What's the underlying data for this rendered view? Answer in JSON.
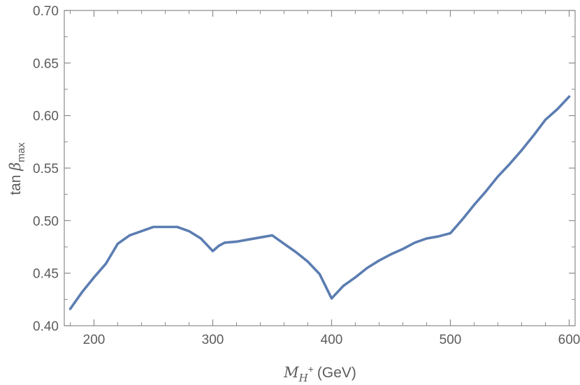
{
  "chart_data": {
    "type": "line",
    "title": "",
    "xlabel": {
      "main": "M",
      "sub": "H",
      "sup": "+",
      "unit": "(GeV)"
    },
    "ylabel": {
      "main": "tan ",
      "symbol": "β",
      "sub": "max"
    },
    "xlim": [
      175,
      605
    ],
    "ylim": [
      0.4,
      0.7
    ],
    "xticks": [
      200,
      300,
      400,
      500,
      600
    ],
    "yticks": [
      0.4,
      0.45,
      0.5,
      0.55,
      0.6,
      0.65,
      0.7
    ],
    "xtick_labels": [
      "200",
      "300",
      "400",
      "500",
      "600"
    ],
    "ytick_labels": [
      "0.40",
      "0.45",
      "0.50",
      "0.55",
      "0.60",
      "0.65",
      "0.70"
    ],
    "grid": false,
    "series": [
      {
        "color": "#5b7db1",
        "x": [
          180,
          185,
          190,
          200,
          210,
          220,
          230,
          240,
          250,
          260,
          270,
          280,
          290,
          300,
          305,
          310,
          320,
          330,
          340,
          350,
          360,
          370,
          380,
          390,
          400,
          410,
          420,
          430,
          440,
          450,
          460,
          470,
          480,
          490,
          500,
          510,
          520,
          530,
          540,
          550,
          560,
          570,
          580,
          590,
          600
        ],
        "y": [
          0.416,
          0.424,
          0.432,
          0.446,
          0.459,
          0.478,
          0.486,
          0.49,
          0.494,
          0.494,
          0.494,
          0.49,
          0.483,
          0.471,
          0.476,
          0.479,
          0.48,
          0.482,
          0.484,
          0.486,
          0.478,
          0.47,
          0.461,
          0.449,
          0.426,
          0.438,
          0.446,
          0.455,
          0.462,
          0.468,
          0.473,
          0.479,
          0.483,
          0.485,
          0.488,
          0.501,
          0.515,
          0.528,
          0.542,
          0.554,
          0.567,
          0.581,
          0.596,
          0.606,
          0.618
        ]
      }
    ]
  }
}
